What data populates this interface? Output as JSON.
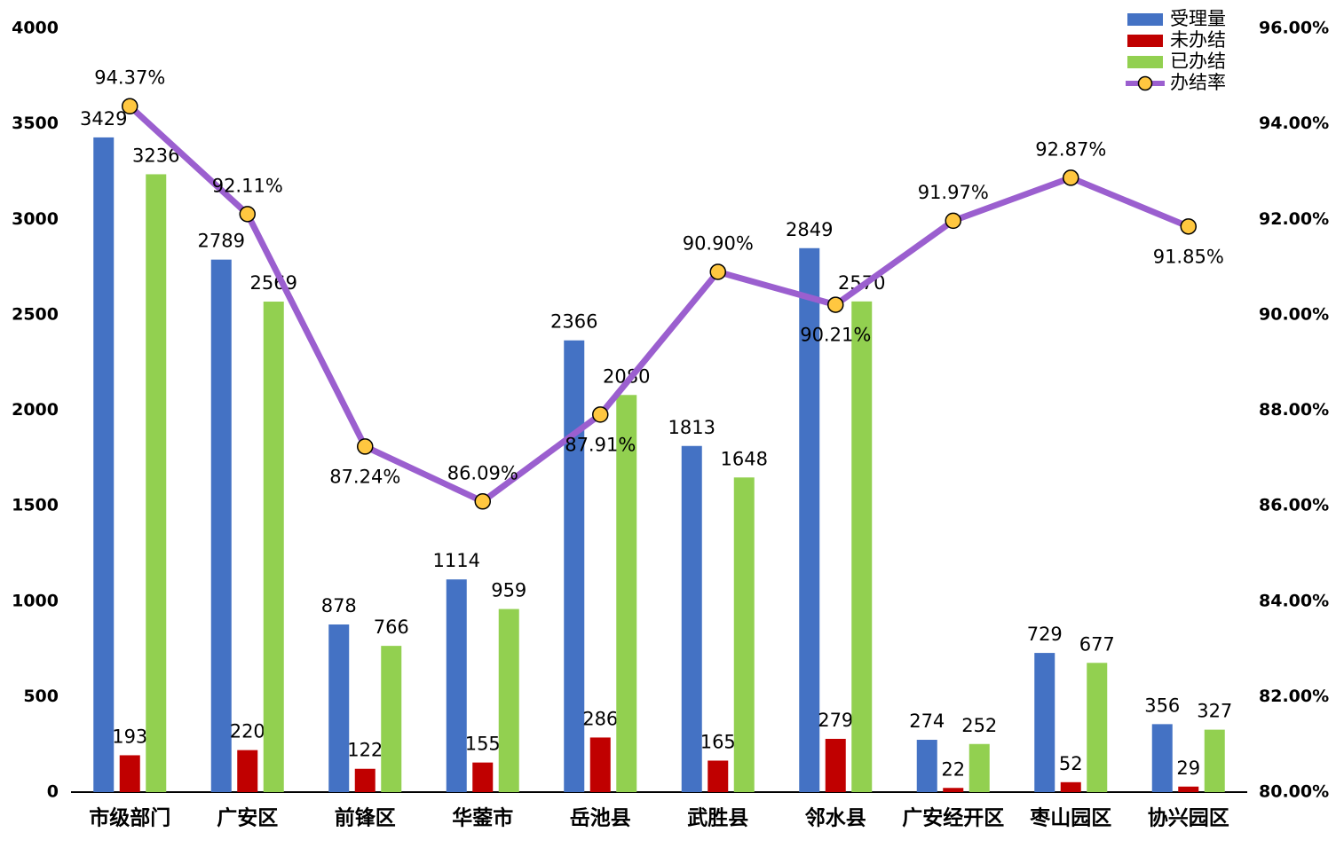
{
  "chart_data": {
    "type": "bar",
    "categories": [
      "市级部门",
      "广安区",
      "前锋区",
      "华蓥市",
      "岳池县",
      "武胜县",
      "邻水县",
      "广安经开区",
      "枣山园区",
      "协兴园区"
    ],
    "series": [
      {
        "name": "受理量",
        "color": "#4472c4",
        "values": [
          3429,
          2789,
          878,
          1114,
          2366,
          1813,
          2849,
          274,
          729,
          356
        ]
      },
      {
        "name": "未办结",
        "color": "#c00000",
        "values": [
          193,
          220,
          122,
          155,
          286,
          165,
          279,
          22,
          52,
          29
        ]
      },
      {
        "name": "已办结",
        "color": "#92d050",
        "values": [
          3236,
          2569,
          766,
          959,
          2080,
          1648,
          2570,
          252,
          677,
          327
        ]
      },
      {
        "name": "办结率",
        "type": "line",
        "axis": "y2",
        "color": "#9b5fcf",
        "marker_color": "#ffc740",
        "values": [
          94.37,
          92.11,
          87.24,
          86.09,
          87.91,
          90.9,
          90.21,
          91.97,
          92.87,
          91.85
        ],
        "value_labels": [
          "94.37%",
          "92.11%",
          "87.24%",
          "86.09%",
          "87.91%",
          "90.90%",
          "90.21%",
          "91.97%",
          "92.87%",
          "91.85%"
        ]
      }
    ],
    "ylim": [
      0,
      4000
    ],
    "yticks": [
      0,
      500,
      1000,
      1500,
      2000,
      2500,
      3000,
      3500,
      4000
    ],
    "y2lim": [
      80,
      96
    ],
    "y2ticks": [
      {
        "value": 80,
        "label": "80.00%"
      },
      {
        "value": 82,
        "label": "82.00%"
      },
      {
        "value": 84,
        "label": "84.00%"
      },
      {
        "value": 86,
        "label": "86.00%"
      },
      {
        "value": 88,
        "label": "88.00%"
      },
      {
        "value": 90,
        "label": "90.00%"
      },
      {
        "value": 92,
        "label": "92.00%"
      },
      {
        "value": 94,
        "label": "94.00%"
      },
      {
        "value": 96,
        "label": "96.00%"
      }
    ],
    "grid": false,
    "legend": "top-right"
  }
}
